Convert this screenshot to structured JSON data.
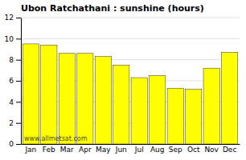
{
  "chart_data": {
    "type": "bar",
    "title": "Ubon Ratchathani : sunshine (hours)",
    "categories": [
      "Jan",
      "Feb",
      "Mar",
      "Apr",
      "May",
      "Jun",
      "Jul",
      "Aug",
      "Sep",
      "Oct",
      "Nov",
      "Dec"
    ],
    "values": [
      9.5,
      9.4,
      8.6,
      8.6,
      8.3,
      7.5,
      6.3,
      6.5,
      5.3,
      5.2,
      7.2,
      8.7
    ],
    "color": "#ffff00",
    "ylim": [
      0,
      12
    ],
    "yticks": [
      0,
      2,
      4,
      6,
      8,
      10,
      12
    ],
    "grid": true,
    "annotations": [
      "www.allmetsat.com"
    ]
  }
}
